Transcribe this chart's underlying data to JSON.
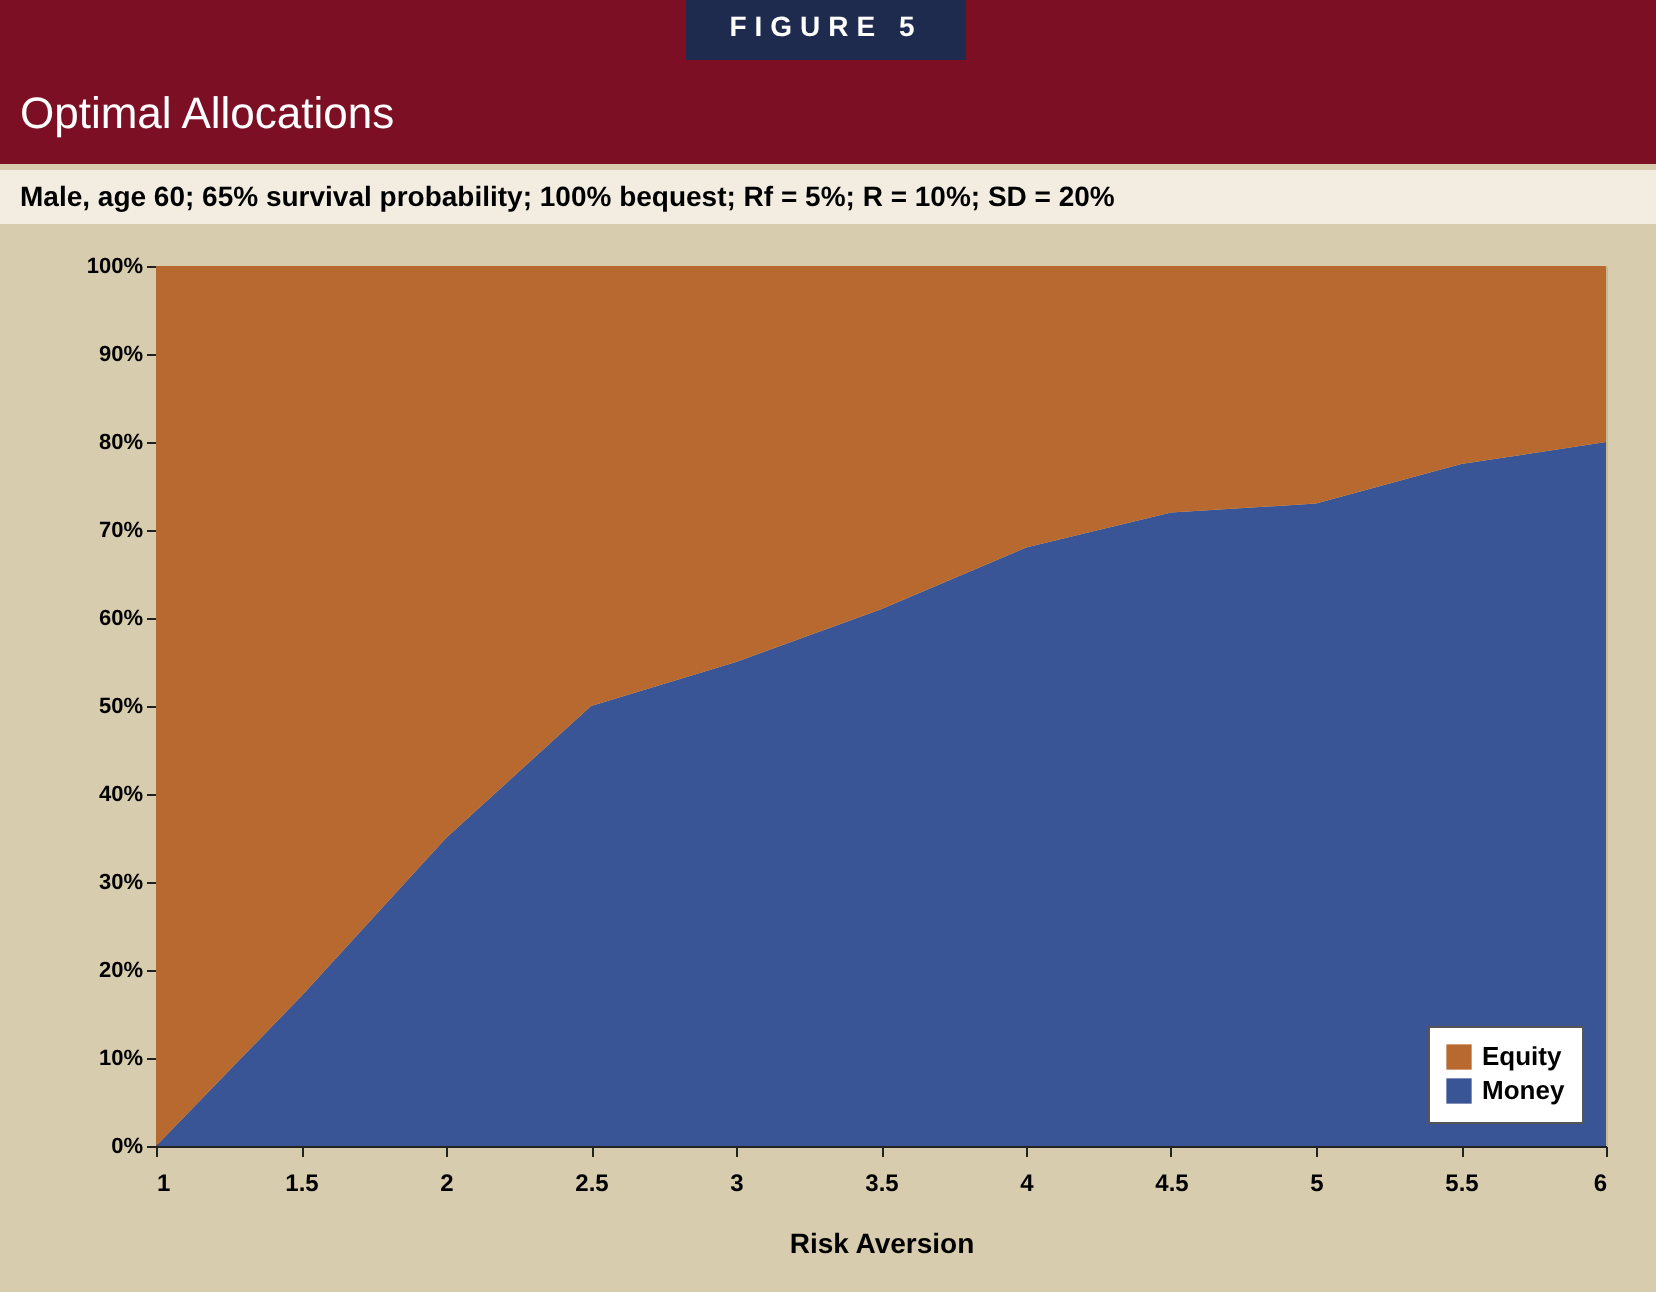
{
  "chart_data": {
    "type": "area",
    "title": "Optimal Allocations",
    "subtitle": "Male, age 60; 65% survival probability; 100% bequest; Rf = 5%; R = 10%; SD = 20%",
    "annotations": [
      "FIGURE 5"
    ],
    "xlabel": "Risk Aversion",
    "x": [
      1,
      1.5,
      2,
      2.5,
      3,
      3.5,
      4,
      4.5,
      5,
      5.5,
      6
    ],
    "series": [
      {
        "name": "Money",
        "color": "#3a5596",
        "values": [
          0,
          17,
          35,
          50,
          55,
          61,
          68,
          72,
          73,
          77.5,
          80
        ]
      },
      {
        "name": "Equity",
        "color": "#b8692f",
        "values": [
          100,
          83,
          65,
          50,
          45,
          39,
          32,
          28,
          27,
          22.5,
          20
        ]
      }
    ],
    "stacked": true,
    "xlim": [
      1,
      6
    ],
    "xticks": [
      1,
      1.5,
      2,
      2.5,
      3,
      3.5,
      4,
      4.5,
      5,
      5.5,
      6
    ],
    "ylim": [
      0,
      100
    ],
    "yticks": [
      {
        "value": 0,
        "label": "0%"
      },
      {
        "value": 10,
        "label": "10%"
      },
      {
        "value": 20,
        "label": "20%"
      },
      {
        "value": 30,
        "label": "30%"
      },
      {
        "value": 40,
        "label": "40%"
      },
      {
        "value": 50,
        "label": "50%"
      },
      {
        "value": 60,
        "label": "60%"
      },
      {
        "value": 70,
        "label": "70%"
      },
      {
        "value": 80,
        "label": "80%"
      },
      {
        "value": 90,
        "label": "90%"
      },
      {
        "value": 100,
        "label": "100%"
      }
    ],
    "grid": true,
    "legend": "bottom right"
  }
}
